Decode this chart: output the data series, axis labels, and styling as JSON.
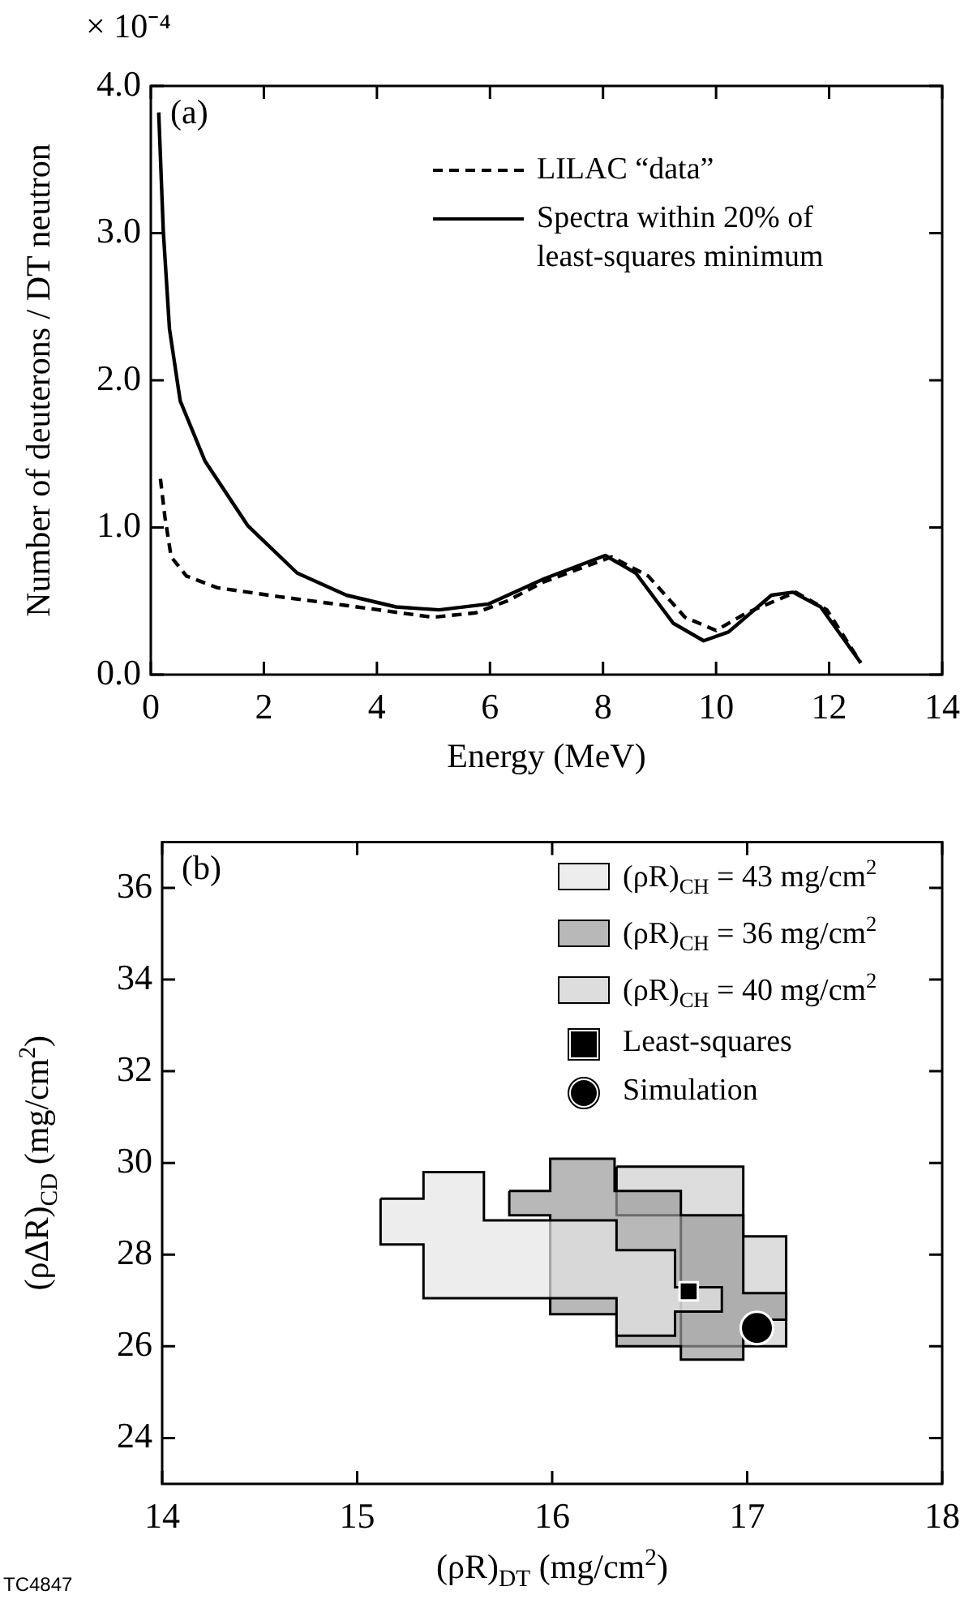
{
  "chart_data": [
    {
      "type": "line",
      "xlabel": "Energy (MeV)",
      "ylabel": "Number of deuterons / DT neutron",
      "annotations": [
        "(a)",
        "× 10⁻⁴"
      ],
      "legend": "top right",
      "xlim": [
        0,
        14
      ],
      "ylim": [
        0,
        4
      ],
      "xticks": [
        0,
        2,
        4,
        6,
        8,
        10,
        12,
        14
      ],
      "yticks": [
        {
          "value": 0,
          "label": "0.0"
        },
        {
          "value": 1,
          "label": "1.0"
        },
        {
          "value": 2,
          "label": "2.0"
        },
        {
          "value": 3,
          "label": "3.0"
        },
        {
          "value": 4,
          "label": "4.0"
        }
      ],
      "series": [
        {
          "name": "LILAC “data”",
          "color": "#000000",
          "line_style": "dashed",
          "x": [
            0.17,
            0.25,
            0.36,
            0.63,
            1.18,
            2.27,
            3.46,
            4.99,
            5.75,
            6.3,
            6.95,
            8.15,
            8.8,
            9.45,
            10.0,
            10.54,
            11.41,
            11.96,
            12.56
          ],
          "values": [
            1.33,
            1.07,
            0.8,
            0.67,
            0.59,
            0.53,
            0.47,
            0.39,
            0.42,
            0.5,
            0.63,
            0.8,
            0.67,
            0.39,
            0.3,
            0.42,
            0.56,
            0.44,
            0.08
          ]
        },
        {
          "name": "Spectra within 20% of least-squares minimum",
          "color": "#000000",
          "line_style": "solid",
          "x": [
            0.14,
            0.22,
            0.33,
            0.52,
            0.96,
            1.72,
            2.59,
            3.46,
            4.34,
            5.1,
            5.97,
            6.95,
            8.04,
            8.58,
            9.24,
            9.78,
            10.22,
            10.98,
            11.36,
            11.85,
            12.56
          ],
          "values": [
            3.82,
            3.02,
            2.35,
            1.86,
            1.45,
            1.01,
            0.69,
            0.54,
            0.46,
            0.44,
            0.48,
            0.65,
            0.81,
            0.69,
            0.35,
            0.23,
            0.29,
            0.54,
            0.56,
            0.46,
            0.08
          ]
        }
      ]
    },
    {
      "type": "area",
      "xlabel": "(ρR)$_{DT}$ (mg/cm$^{2}$)",
      "ylabel": "(ρΔR)$_{CD}$ (mg/cm$^{2}$)",
      "annotations": [
        "(b)",
        "TC4847"
      ],
      "legend": "top right",
      "xlim": [
        14,
        18
      ],
      "ylim": [
        23,
        37
      ],
      "xticks": [
        14,
        15,
        16,
        17,
        18
      ],
      "yticks": [
        24,
        26,
        28,
        30,
        32,
        34,
        36
      ],
      "series": [
        {
          "name": "(ρR)$_{CH}$ = 43 mg/cm$^{2}$",
          "color": "#e6e6e6",
          "x": [
            15.12,
            15.34,
            15.34,
            15.65,
            15.65,
            16.33,
            16.33,
            16.63,
            16.63,
            16.87,
            16.87,
            16.63,
            16.63,
            16.33,
            16.33,
            15.34,
            15.34,
            15.12
          ],
          "values": [
            29.22,
            29.22,
            29.8,
            29.8,
            28.75,
            28.75,
            28.1,
            28.1,
            27.29,
            27.29,
            26.76,
            26.76,
            26.23,
            26.23,
            27.05,
            27.05,
            28.22,
            28.22
          ]
        },
        {
          "name": "(ρR)$_{CH}$ = 36 mg/cm$^{2}$",
          "color": "#9a9a9a",
          "x": [
            15.78,
            15.99,
            15.99,
            16.32,
            16.32,
            16.66,
            16.66,
            16.98,
            16.98,
            17.2,
            17.2,
            16.98,
            16.98,
            16.66,
            16.66,
            16.33,
            16.33,
            15.99,
            15.99,
            15.78
          ],
          "values": [
            29.39,
            29.39,
            30.09,
            30.09,
            29.39,
            29.39,
            28.86,
            28.86,
            27.16,
            27.16,
            26.58,
            26.58,
            25.71,
            25.71,
            26.0,
            26.0,
            26.7,
            26.7,
            28.86,
            28.86
          ]
        },
        {
          "name": "(ρR)$_{CH}$ = 40 mg/cm$^{2}$",
          "color": "#cfcfcf",
          "x": [
            16.33,
            16.98,
            16.98,
            17.2,
            17.2,
            16.66,
            16.66,
            16.33
          ],
          "values": [
            29.92,
            29.92,
            28.4,
            28.4,
            26.0,
            26.0,
            28.86,
            28.86
          ]
        },
        {
          "name": "Least-squares",
          "type": "scatter",
          "marker": "square",
          "color": "#000000",
          "x": [
            16.7
          ],
          "values": [
            27.2
          ]
        },
        {
          "name": "Simulation",
          "type": "scatter",
          "marker": "circle",
          "color": "#000000",
          "x": [
            17.05
          ],
          "values": [
            26.4
          ]
        }
      ]
    }
  ]
}
